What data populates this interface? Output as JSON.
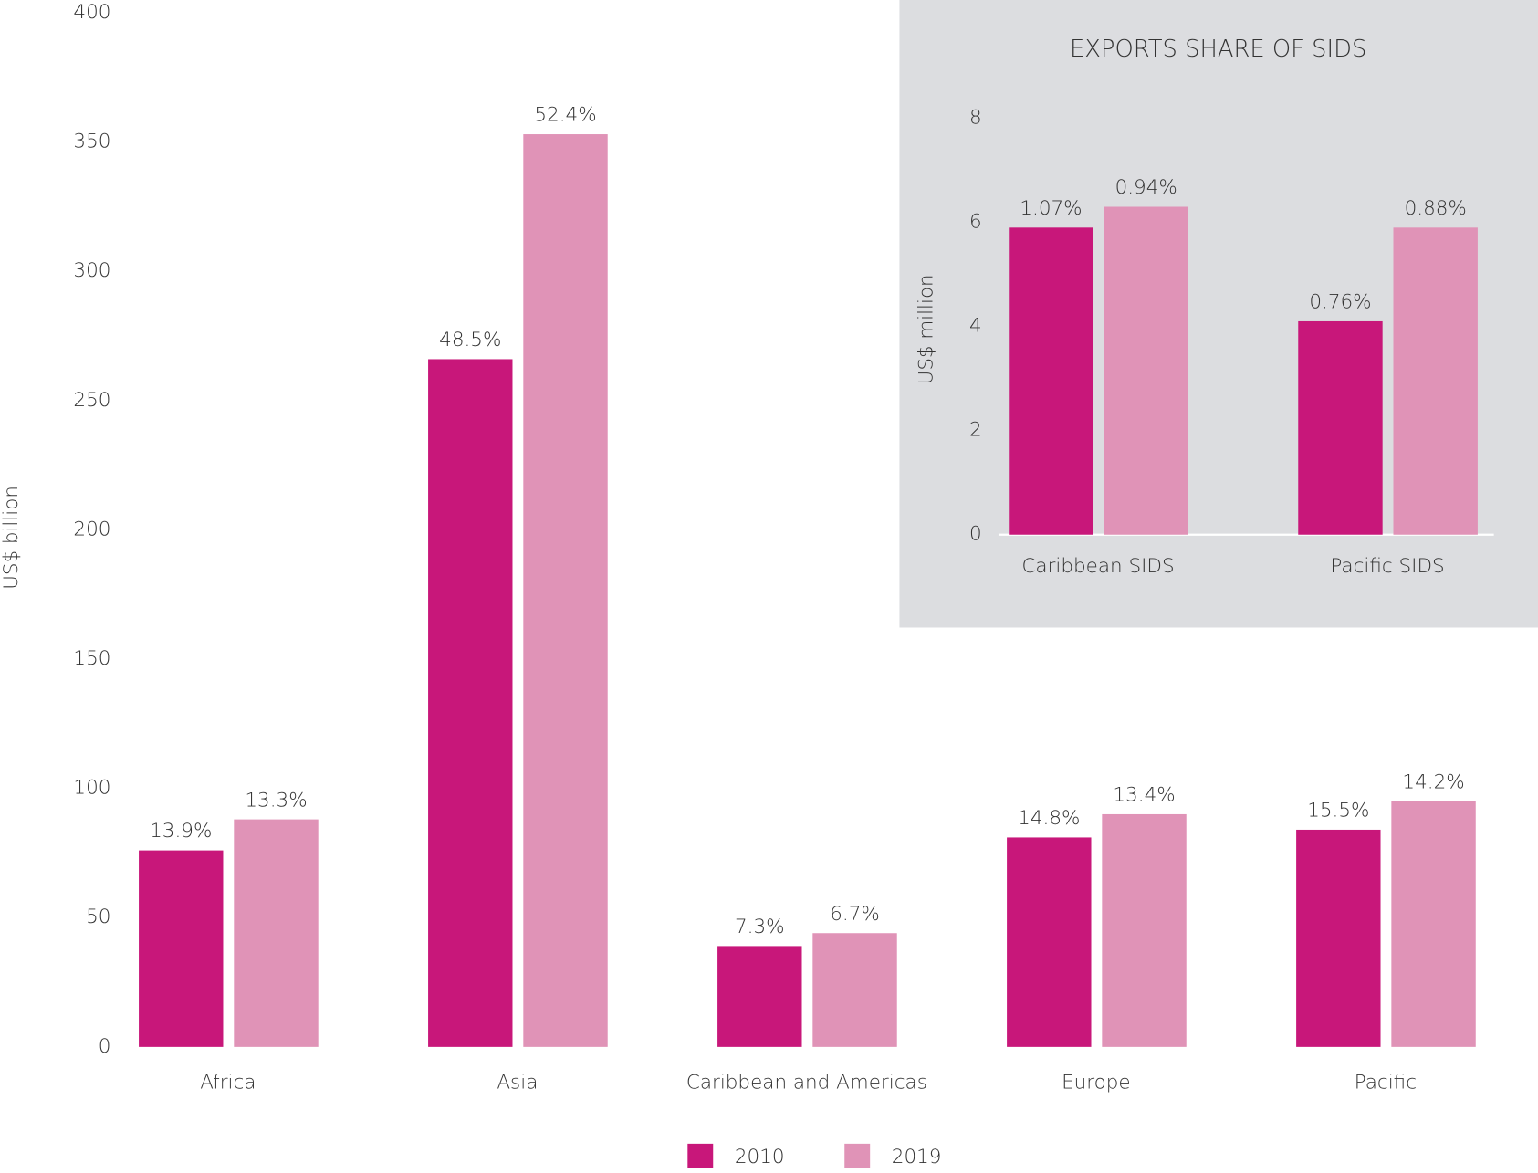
{
  "chart_data": [
    {
      "type": "bar",
      "y_label": "US$ billion",
      "categories": [
        "Africa",
        "Asia",
        "Caribbean and Americas",
        "Europe",
        "Pacific"
      ],
      "series": [
        {
          "name": "2010",
          "color": "#c8177a",
          "values": [
            76,
            266,
            39,
            81,
            84
          ],
          "share_labels": [
            "13.9%",
            "48.5%",
            "7.3%",
            "14.8%",
            "15.5%"
          ]
        },
        {
          "name": "2019",
          "color": "#e093b7",
          "values": [
            88,
            353,
            44,
            90,
            95
          ],
          "share_labels": [
            "13.3%",
            "52.4%",
            "6.7%",
            "13.4%",
            "14.2%"
          ]
        }
      ],
      "ylim": [
        0,
        400
      ],
      "yticks": [
        0,
        50,
        100,
        150,
        200,
        250,
        300,
        350,
        400
      ],
      "grid": false,
      "legend": "bottom"
    },
    {
      "type": "bar",
      "title": "EXPORTS SHARE OF SIDS",
      "y_label": "US$ million",
      "categories": [
        "Caribbean SIDS",
        "Pacific SIDS"
      ],
      "series": [
        {
          "color": "#c8177a",
          "values": [
            5.9,
            4.1
          ],
          "share_labels": [
            "1.07%",
            "0.76%"
          ]
        },
        {
          "color": "#e093b7",
          "values": [
            6.3,
            5.9
          ],
          "share_labels": [
            "0.94%",
            "0.88%"
          ]
        }
      ],
      "ylim": [
        0,
        8
      ],
      "yticks": [
        0,
        2,
        4,
        6,
        8
      ],
      "grid": false
    }
  ]
}
